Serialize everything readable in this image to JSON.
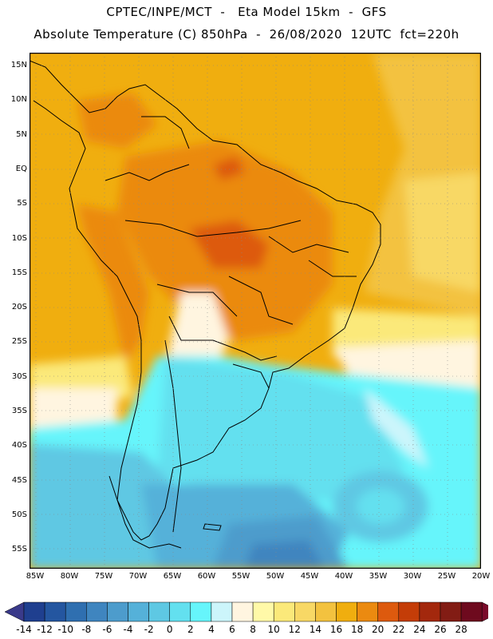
{
  "header": {
    "line1": "CPTEC/INPE/MCT  -   Eta Model 15km  -  GFS",
    "line2": "Absolute Temperature (C) 850hPa  -  26/08/2020  12UTC  fct=220h"
  },
  "map": {
    "lat_labels": [
      "15N",
      "10N",
      "5N",
      "EQ",
      "5S",
      "10S",
      "15S",
      "20S",
      "25S",
      "30S",
      "35S",
      "40S",
      "45S",
      "50S",
      "55S"
    ],
    "lon_labels": [
      "85W",
      "80W",
      "75W",
      "70W",
      "65W",
      "60W",
      "55W",
      "50W",
      "45W",
      "40W",
      "35W",
      "30W",
      "25W",
      "20W"
    ]
  },
  "colorbar": {
    "labels": [
      "-14",
      "-12",
      "-10",
      "-8",
      "-6",
      "-4",
      "-2",
      "0",
      "2",
      "4",
      "6",
      "8",
      "10",
      "12",
      "14",
      "16",
      "18",
      "20",
      "22",
      "24",
      "26",
      "28"
    ],
    "colors": [
      "#1f3f8f",
      "#2456a0",
      "#2f6fb0",
      "#3f85bf",
      "#4d9ccc",
      "#55b1d9",
      "#5ec8e3",
      "#63e0ef",
      "#66f5fb",
      "#ccf5fb",
      "#fff5e0",
      "#fff9a8",
      "#fbe97a",
      "#f8d865",
      "#f3c23f",
      "#f0ae0f",
      "#eb8a10",
      "#dd5a0e",
      "#c43d08",
      "#a3280d",
      "#821c14",
      "#6e0a1e"
    ],
    "low_arrow_color": "#3a3a8a",
    "high_arrow_color": "#7a0a2a"
  }
}
